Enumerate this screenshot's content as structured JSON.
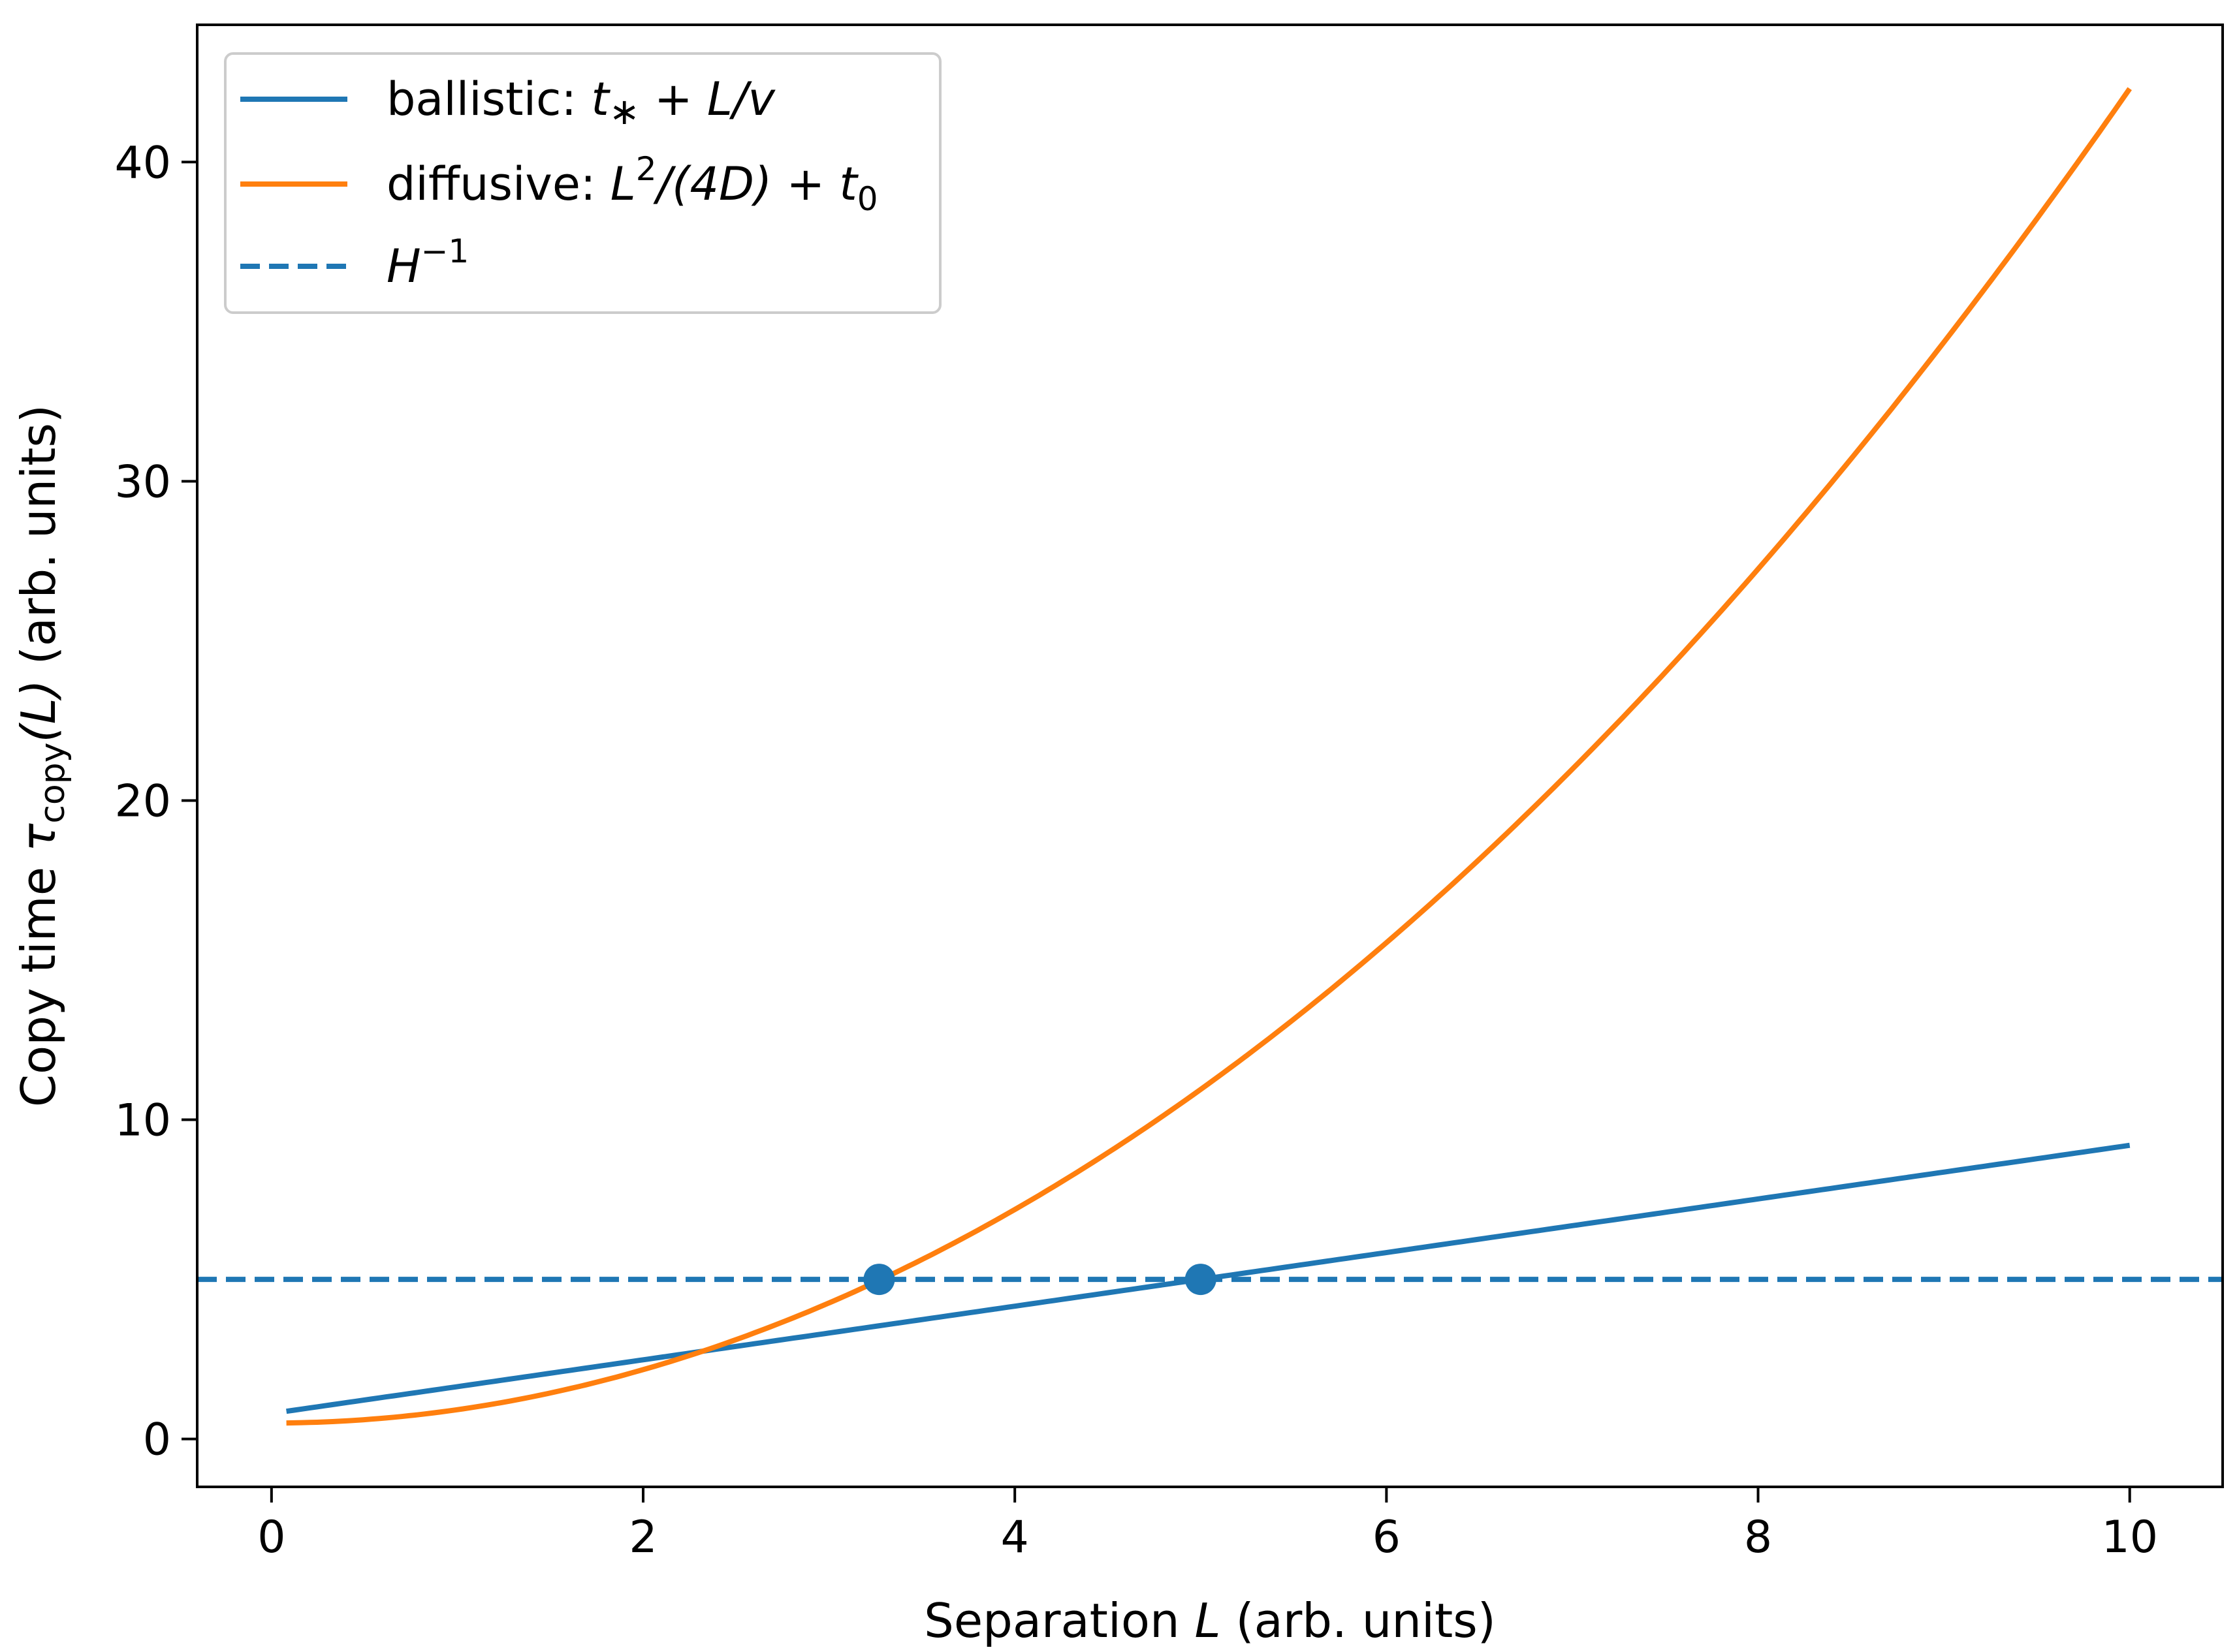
{
  "chart_data": {
    "type": "line",
    "title": "",
    "xlabel": "Separation L (arb. units)",
    "ylabel": "Copy time τcopy(L) (arb. units)",
    "xlim": [
      -0.4,
      10.5
    ],
    "ylim": [
      -1.5,
      44.3
    ],
    "xticks": [
      0,
      2,
      4,
      6,
      8,
      10
    ],
    "yticks": [
      0,
      10,
      20,
      30,
      40
    ],
    "grid": false,
    "legend_position": "top-left",
    "series": [
      {
        "name": "ballistic: t* + L/v",
        "color": "#1f77b4",
        "style": "solid",
        "formula": {
          "kind": "linear",
          "intercept": 0.8,
          "slope": 0.84
        },
        "x_range": [
          0.08,
          10
        ],
        "points": [
          [
            0.08,
            0.87
          ],
          [
            2,
            2.48
          ],
          [
            4,
            4.16
          ],
          [
            5.0,
            5.0
          ],
          [
            6,
            5.84
          ],
          [
            8,
            7.52
          ],
          [
            10,
            9.2
          ]
        ]
      },
      {
        "name": "diffusive: L²/(4D) + t0",
        "color": "#ff7f0e",
        "style": "solid",
        "formula": {
          "kind": "quadratic",
          "intercept": 0.5,
          "coef": 0.418
        },
        "x_range": [
          0.08,
          10
        ],
        "points": [
          [
            0.08,
            0.5
          ],
          [
            2,
            2.17
          ],
          [
            3.27,
            4.97
          ],
          [
            4,
            7.19
          ],
          [
            6,
            15.55
          ],
          [
            8,
            27.25
          ],
          [
            10,
            42.3
          ]
        ]
      },
      {
        "name": "H⁻¹",
        "color": "#1f77b4",
        "style": "dashed",
        "value": 5.0
      }
    ],
    "markers": [
      {
        "x": 3.27,
        "y": 5.0,
        "color": "#1f77b4"
      },
      {
        "x": 5.0,
        "y": 5.0,
        "color": "#1f77b4"
      }
    ]
  },
  "legend": {
    "ballistic_prefix": "ballistic: ",
    "ballistic_t": "t",
    "ballistic_star": "∗",
    "ballistic_rest": " + L/v",
    "diffusive_prefix": "diffusive: ",
    "diffusive_L": "L",
    "diffusive_sup": "2",
    "diffusive_mid": "/(4D) + t",
    "diffusive_sub": "0",
    "hinv_H": "H",
    "hinv_sup": "−1"
  },
  "axes": {
    "xlabel_prefix": "Separation ",
    "xlabel_var": "L",
    "xlabel_suffix": " (arb. units)",
    "ylabel_prefix": "Copy time ",
    "ylabel_tau": "τ",
    "ylabel_sub": "copy",
    "ylabel_arg": "(L)",
    "ylabel_suffix": " (arb. units)"
  }
}
